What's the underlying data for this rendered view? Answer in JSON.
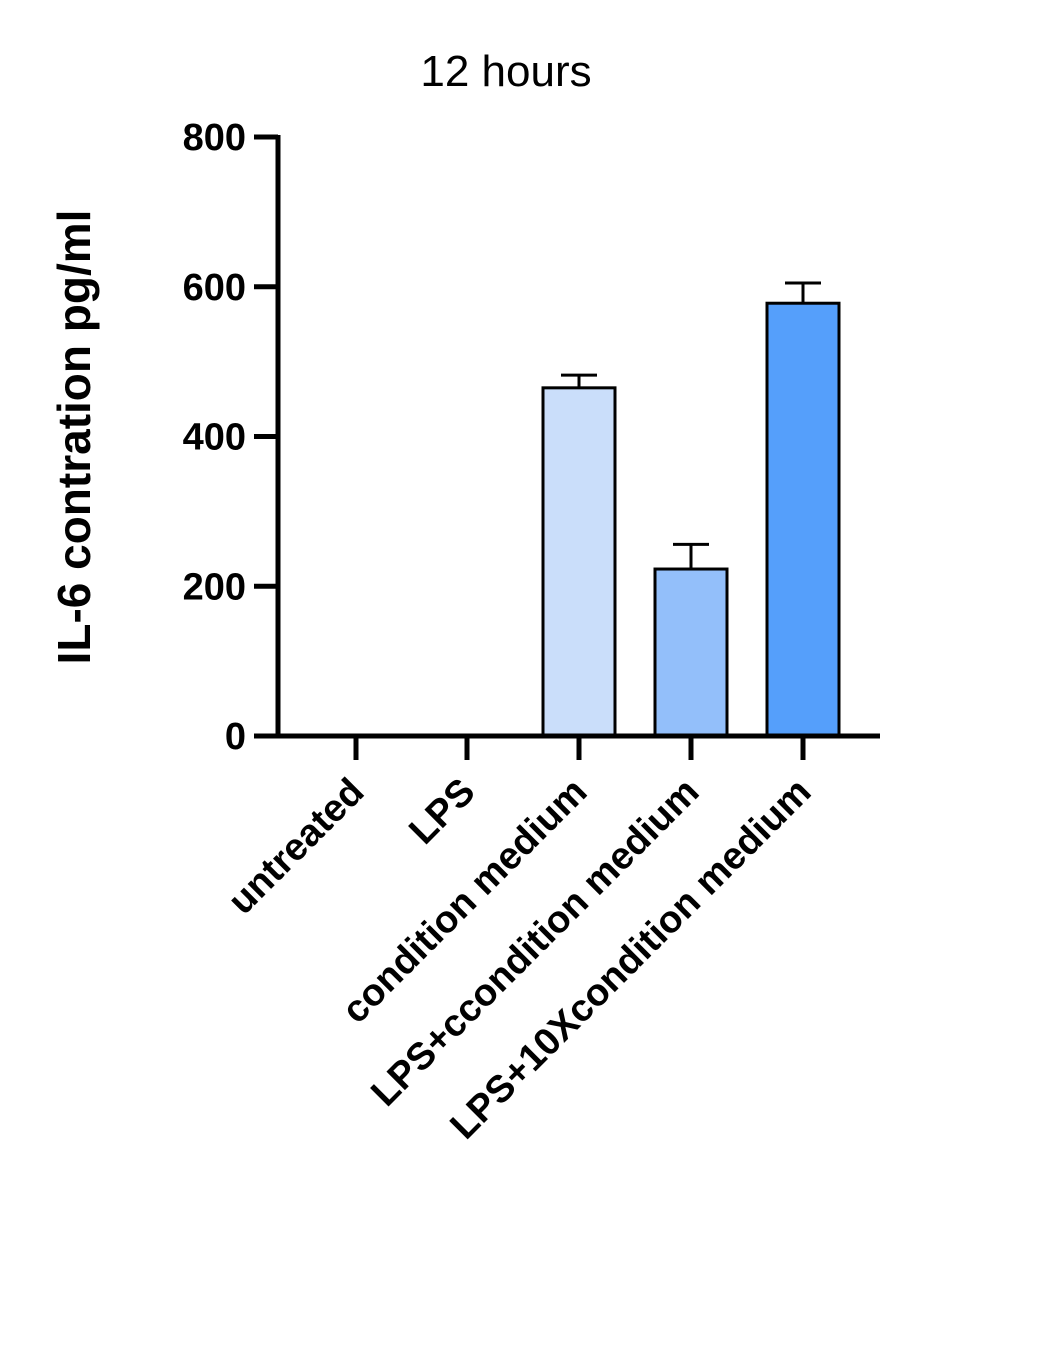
{
  "chart_data": {
    "type": "bar",
    "title": "12 hours",
    "xlabel": "",
    "ylabel": "IL-6 contration pg/ml",
    "categories": [
      "untreated",
      "LPS",
      "condition medium",
      "LPS+ccondition medium",
      "LPS+10Xcondition medium"
    ],
    "values": [
      0,
      0,
      465,
      223,
      578
    ],
    "errors": [
      0,
      0,
      17,
      33,
      27
    ],
    "colors": [
      "#ffffff",
      "#ffffff",
      "#cadefa",
      "#93bffa",
      "#559ffb"
    ],
    "yticks": [
      0,
      200,
      400,
      600,
      800
    ],
    "ytick_labels": [
      "0",
      "200",
      "400",
      "600",
      "800"
    ],
    "ylim": [
      0,
      800
    ],
    "grid": false,
    "legend": "none"
  }
}
